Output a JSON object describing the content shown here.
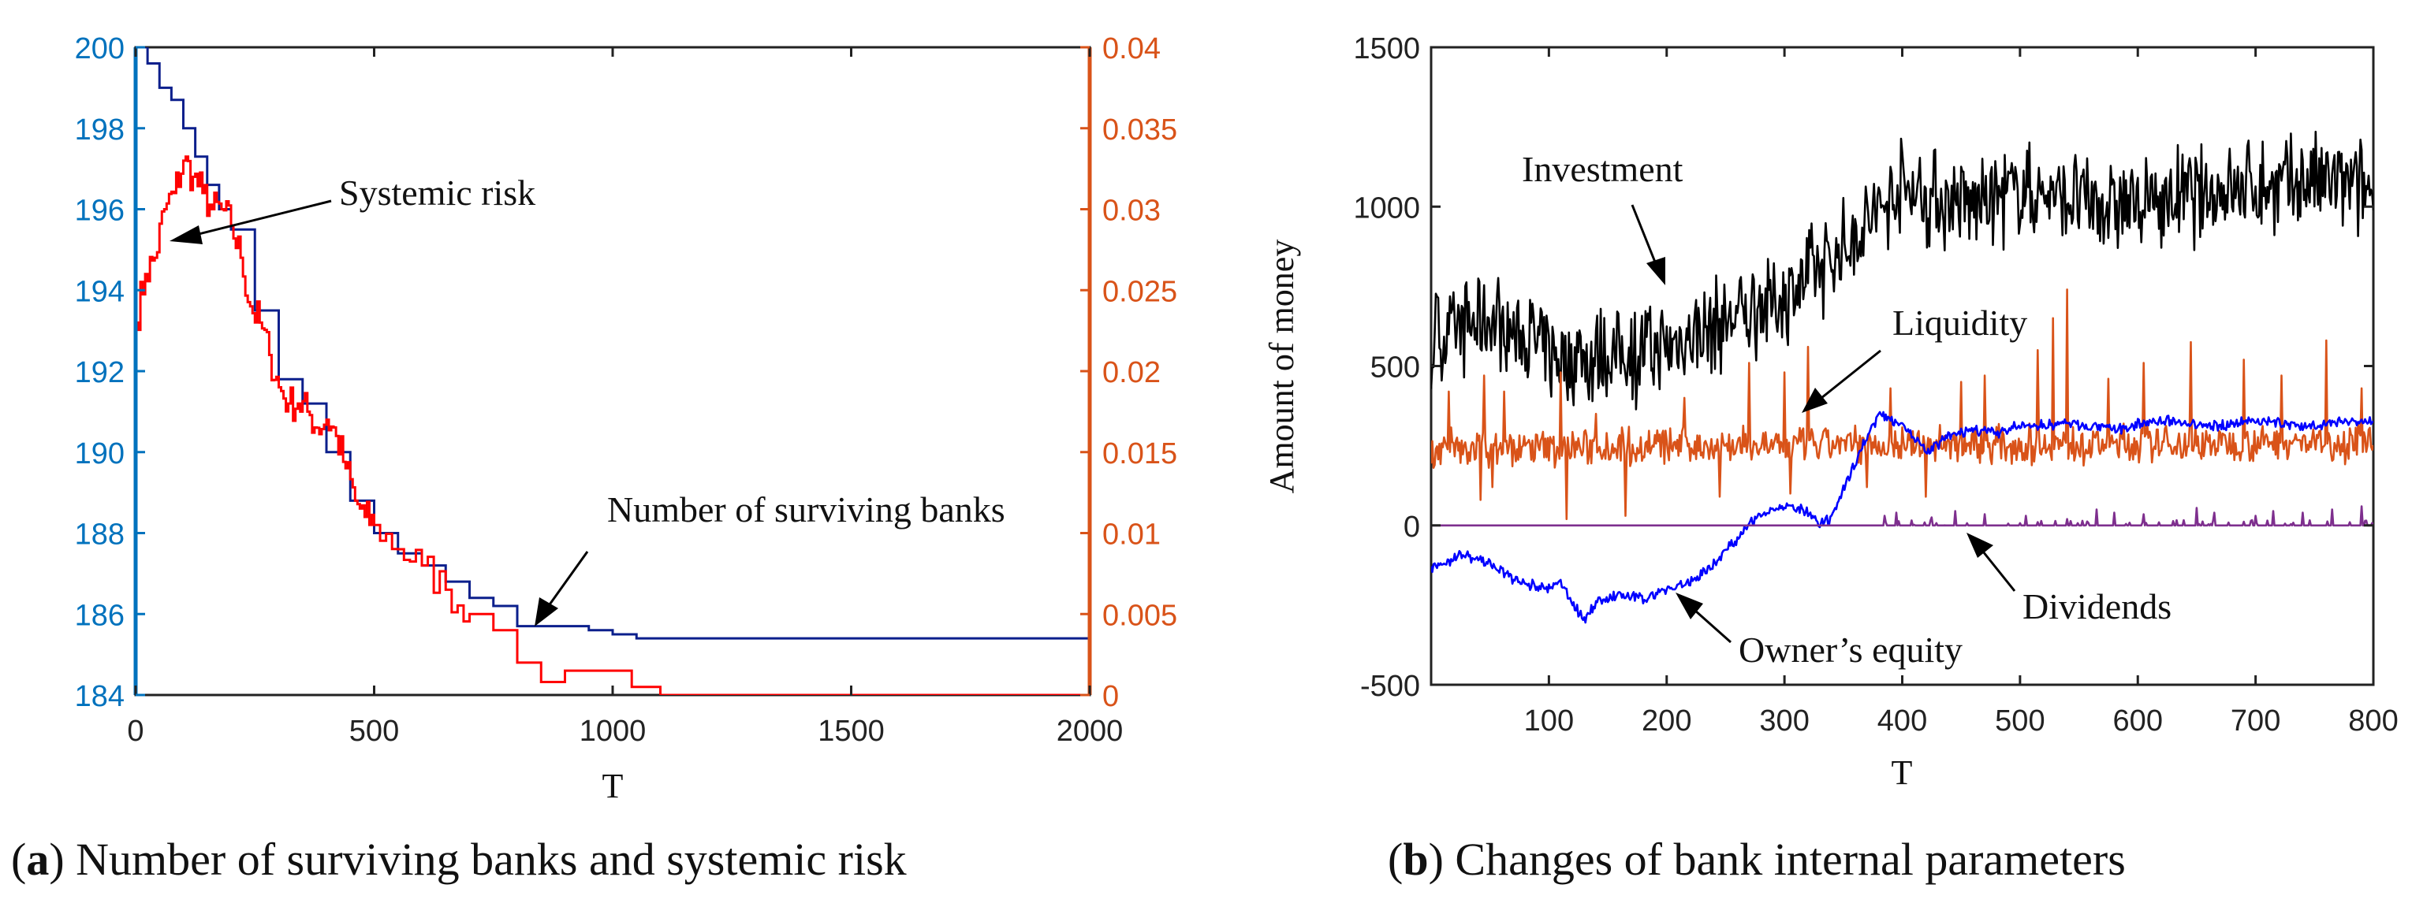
{
  "chart_data": [
    {
      "type": "line",
      "panel": "a",
      "caption_label": "a",
      "caption_text": "Number of surviving banks and systemic risk",
      "xlabel": "T",
      "xlim": [
        0,
        2000
      ],
      "xticks": [
        0,
        500,
        1000,
        1500,
        2000
      ],
      "x_tick_labels": [
        "0",
        "500",
        "1000",
        "1500",
        "2000"
      ],
      "ylim_left": [
        184,
        200
      ],
      "yticks_left": [
        184,
        186,
        188,
        190,
        192,
        194,
        196,
        198,
        200
      ],
      "y_tick_labels_left": [
        "184",
        "186",
        "188",
        "190",
        "192",
        "194",
        "196",
        "198",
        "200"
      ],
      "ylim_right": [
        0,
        0.04
      ],
      "yticks_right": [
        0,
        0.005,
        0.01,
        0.015,
        0.02,
        0.025,
        0.03,
        0.035,
        0.04
      ],
      "y_tick_labels_right": [
        "0",
        "0.005",
        "0.01",
        "0.015",
        "0.02",
        "0.025",
        "0.03",
        "0.035",
        "0.04"
      ],
      "left_axis_color": "#0072BD",
      "right_axis_color": "#D95319",
      "series": [
        {
          "name": "Number of surviving banks",
          "axis": "left",
          "color": "#0B1F8C",
          "x": [
            0,
            25,
            50,
            75,
            100,
            125,
            150,
            175,
            200,
            250,
            300,
            350,
            400,
            450,
            500,
            550,
            600,
            650,
            700,
            750,
            800,
            850,
            900,
            950,
            1000,
            1050,
            1100,
            1500,
            2000
          ],
          "y": [
            200,
            199.6,
            199,
            198.7,
            198.0,
            197.3,
            196.6,
            196.0,
            195.5,
            193.5,
            191.8,
            191.2,
            190.0,
            188.8,
            188.0,
            187.5,
            187.2,
            186.8,
            186.4,
            186.2,
            185.7,
            185.7,
            185.7,
            185.6,
            185.5,
            185.4,
            185.4,
            185.4,
            185.4
          ]
        },
        {
          "name": "Systemic risk",
          "axis": "right",
          "color": "#FF0000",
          "x": [
            0,
            20,
            40,
            60,
            80,
            100,
            120,
            140,
            160,
            180,
            200,
            220,
            240,
            260,
            280,
            300,
            320,
            340,
            360,
            380,
            400,
            420,
            440,
            460,
            480,
            500,
            550,
            600,
            650,
            700,
            750,
            800,
            850,
            900,
            950,
            1000,
            1040,
            1100,
            1500,
            2000
          ],
          "y": [
            0.023,
            0.026,
            0.027,
            0.03,
            0.031,
            0.033,
            0.032,
            0.031,
            0.03,
            0.03,
            0.029,
            0.027,
            0.024,
            0.023,
            0.021,
            0.019,
            0.018,
            0.018,
            0.0175,
            0.0165,
            0.017,
            0.016,
            0.014,
            0.012,
            0.011,
            0.0105,
            0.009,
            0.008,
            0.0065,
            0.005,
            0.004,
            0.002,
            0.0008,
            0.0015,
            0.0015,
            0.0015,
            0.0005,
            0,
            0,
            0
          ]
        }
      ],
      "annotations": [
        "Systemic risk",
        "Number of surviving banks"
      ]
    },
    {
      "type": "line",
      "panel": "b",
      "caption_label": "b",
      "caption_text": "Changes of bank internal parameters",
      "xlabel": "T",
      "ylabel": "Amount of money",
      "xlim": [
        0,
        800
      ],
      "xticks": [
        100,
        200,
        300,
        400,
        500,
        600,
        700,
        800
      ],
      "x_tick_labels": [
        "100",
        "200",
        "300",
        "400",
        "500",
        "600",
        "700",
        "800"
      ],
      "ylim": [
        -500,
        1500
      ],
      "yticks": [
        -500,
        0,
        500,
        1000,
        1500
      ],
      "y_tick_labels": [
        "-500",
        "0",
        "500",
        "1000",
        "1500"
      ],
      "series": [
        {
          "name": "Investment",
          "color": "#000000",
          "x": [
            0,
            50,
            100,
            150,
            200,
            250,
            300,
            350,
            400,
            450,
            500,
            550,
            600,
            650,
            700,
            750,
            800
          ],
          "y": [
            580,
            650,
            540,
            520,
            560,
            640,
            720,
            870,
            1060,
            1000,
            1050,
            1020,
            1000,
            1040,
            1060,
            1080,
            1050
          ],
          "noise_amplitude": 180
        },
        {
          "name": "Liquidity",
          "color": "#D95319",
          "x": [
            0,
            100,
            200,
            300,
            400,
            500,
            600,
            700,
            800
          ],
          "y": [
            240,
            245,
            250,
            250,
            255,
            255,
            255,
            260,
            260
          ],
          "noise_amplitude": 70,
          "spikes": [
            {
              "x": 15,
              "y": 420
            },
            {
              "x": 45,
              "y": 470
            },
            {
              "x": 62,
              "y": 420
            },
            {
              "x": 110,
              "y": 480
            },
            {
              "x": 140,
              "y": 350
            },
            {
              "x": 165,
              "y": 510
            },
            {
              "x": 215,
              "y": 400
            },
            {
              "x": 270,
              "y": 510
            },
            {
              "x": 300,
              "y": 480
            },
            {
              "x": 320,
              "y": 560
            },
            {
              "x": 390,
              "y": 430
            },
            {
              "x": 450,
              "y": 450
            },
            {
              "x": 470,
              "y": 470
            },
            {
              "x": 515,
              "y": 550
            },
            {
              "x": 528,
              "y": 650
            },
            {
              "x": 540,
              "y": 740
            },
            {
              "x": 575,
              "y": 460
            },
            {
              "x": 605,
              "y": 510
            },
            {
              "x": 645,
              "y": 575
            },
            {
              "x": 690,
              "y": 520
            },
            {
              "x": 722,
              "y": 470
            },
            {
              "x": 760,
              "y": 580
            },
            {
              "x": 790,
              "y": 430
            }
          ],
          "dips": [
            {
              "x": 42,
              "y": 80
            },
            {
              "x": 52,
              "y": 120
            },
            {
              "x": 115,
              "y": 20
            },
            {
              "x": 165,
              "y": 30
            },
            {
              "x": 245,
              "y": 90
            },
            {
              "x": 305,
              "y": 100
            },
            {
              "x": 370,
              "y": 120
            },
            {
              "x": 420,
              "y": 90
            }
          ]
        },
        {
          "name": "Owner's equity",
          "color": "#0000FF",
          "x": [
            0,
            25,
            50,
            75,
            100,
            110,
            120,
            130,
            140,
            160,
            180,
            200,
            220,
            240,
            260,
            280,
            300,
            320,
            330,
            340,
            360,
            380,
            400,
            420,
            440,
            460,
            480,
            500,
            540,
            580,
            620,
            660,
            700,
            740,
            780,
            800
          ],
          "y": [
            -140,
            -90,
            -120,
            -180,
            -200,
            -180,
            -240,
            -300,
            -240,
            -220,
            -230,
            -200,
            -180,
            -120,
            -40,
            40,
            60,
            40,
            0,
            20,
            200,
            350,
            320,
            230,
            280,
            300,
            290,
            310,
            320,
            300,
            330,
            310,
            330,
            310,
            330,
            320
          ],
          "noise_amplitude": 20
        },
        {
          "name": "Dividends",
          "color": "#7E2F8E",
          "x": [
            0,
            380,
            400,
            800
          ],
          "y": [
            0,
            0,
            0,
            0
          ],
          "spikes": [
            {
              "x": 385,
              "y": 30
            },
            {
              "x": 395,
              "y": 40
            },
            {
              "x": 425,
              "y": 25
            },
            {
              "x": 445,
              "y": 45
            },
            {
              "x": 470,
              "y": 35
            },
            {
              "x": 505,
              "y": 30
            },
            {
              "x": 540,
              "y": 20
            },
            {
              "x": 565,
              "y": 50
            },
            {
              "x": 580,
              "y": 40
            },
            {
              "x": 605,
              "y": 35
            },
            {
              "x": 650,
              "y": 55
            },
            {
              "x": 665,
              "y": 40
            },
            {
              "x": 700,
              "y": 30
            },
            {
              "x": 715,
              "y": 45
            },
            {
              "x": 740,
              "y": 40
            },
            {
              "x": 765,
              "y": 50
            },
            {
              "x": 790,
              "y": 60
            }
          ]
        }
      ],
      "annotations": [
        "Investment",
        "Liquidity",
        "Owner’s equity",
        "Dividends"
      ]
    }
  ]
}
